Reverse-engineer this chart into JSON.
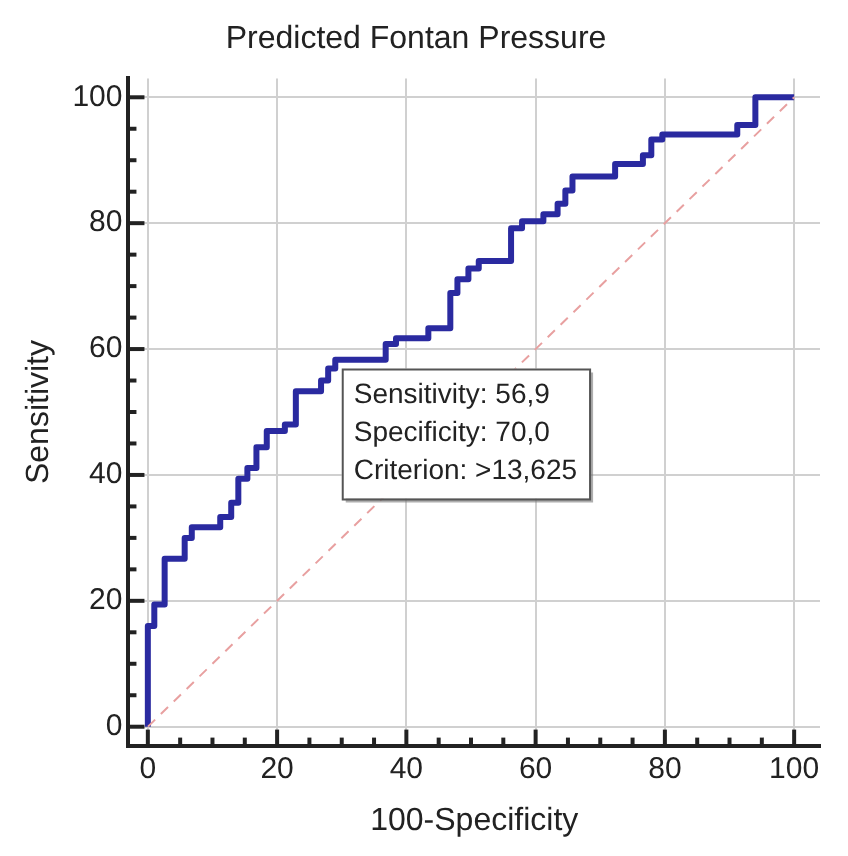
{
  "chart_data": {
    "type": "step",
    "title": "Predicted Fontan Pressure",
    "xlabel": "100-Specificity",
    "ylabel": "Sensitivity",
    "xlim": [
      -3,
      104
    ],
    "ylim": [
      -3,
      103
    ],
    "xticks": [
      0,
      {
        "value": 5,
        "label": null
      },
      {
        "value": 10,
        "label": null
      },
      {
        "value": 15,
        "label": null
      },
      20,
      {
        "value": 25,
        "label": null
      },
      {
        "value": 30,
        "label": null
      },
      {
        "value": 35,
        "label": null
      },
      40,
      {
        "value": 45,
        "label": null
      },
      {
        "value": 50,
        "label": null
      },
      {
        "value": 55,
        "label": null
      },
      60,
      {
        "value": 65,
        "label": null
      },
      {
        "value": 70,
        "label": null
      },
      {
        "value": 75,
        "label": null
      },
      80,
      {
        "value": 85,
        "label": null
      },
      {
        "value": 90,
        "label": null
      },
      {
        "value": 95,
        "label": null
      },
      100
    ],
    "yticks": [
      0,
      {
        "value": 5,
        "label": null
      },
      {
        "value": 10,
        "label": null
      },
      {
        "value": 15,
        "label": null
      },
      20,
      {
        "value": 25,
        "label": null
      },
      {
        "value": 30,
        "label": null
      },
      {
        "value": 35,
        "label": null
      },
      40,
      {
        "value": 45,
        "label": null
      },
      {
        "value": 50,
        "label": null
      },
      {
        "value": 55,
        "label": null
      },
      60,
      {
        "value": 65,
        "label": null
      },
      {
        "value": 70,
        "label": null
      },
      {
        "value": 75,
        "label": null
      },
      80,
      {
        "value": 85,
        "label": null
      },
      {
        "value": 90,
        "label": null
      },
      {
        "value": 95,
        "label": null
      },
      100
    ],
    "grid": true,
    "legend": false,
    "marker": "none",
    "series": [
      {
        "type": "step",
        "color": "#2a2aa0",
        "line_style": "solid",
        "x": [
          0,
          0,
          1,
          2.6,
          5.7,
          6.8,
          11.2,
          12.9,
          14,
          15.4,
          16.8,
          18.4,
          21.2,
          22.9,
          26.8,
          27.9,
          29,
          36.8,
          38.4,
          43.4,
          46.8,
          47.9,
          49.6,
          51.2,
          56.2,
          57.9,
          61.2,
          63.4,
          64.6,
          65.7,
          72.3,
          76.6,
          77.9,
          79.6,
          91.2,
          94,
          98.8,
          100
        ],
        "values": [
          0,
          9.4,
          16,
          19.4,
          26.7,
          30,
          31.7,
          33.3,
          35.6,
          39.4,
          41.1,
          44.4,
          47,
          48,
          53.3,
          55,
          56.9,
          58.3,
          60.8,
          61.7,
          63.3,
          68.9,
          71.1,
          72.8,
          74,
          79.2,
          80.3,
          81.4,
          83.1,
          85.2,
          87.4,
          89.4,
          90.8,
          93.3,
          94.1,
          95.6,
          100,
          100
        ]
      },
      {
        "type": "line",
        "color": "#e8a0a0",
        "line_style": "dashed",
        "x": [
          0,
          100
        ],
        "values": [
          0,
          100
        ]
      }
    ],
    "annotations": [
      {
        "text": "Sensitivity: 56,9",
        "x": 30,
        "y": 56.9
      },
      "Specificity: 70,0",
      "Criterion: >13,625"
    ]
  }
}
